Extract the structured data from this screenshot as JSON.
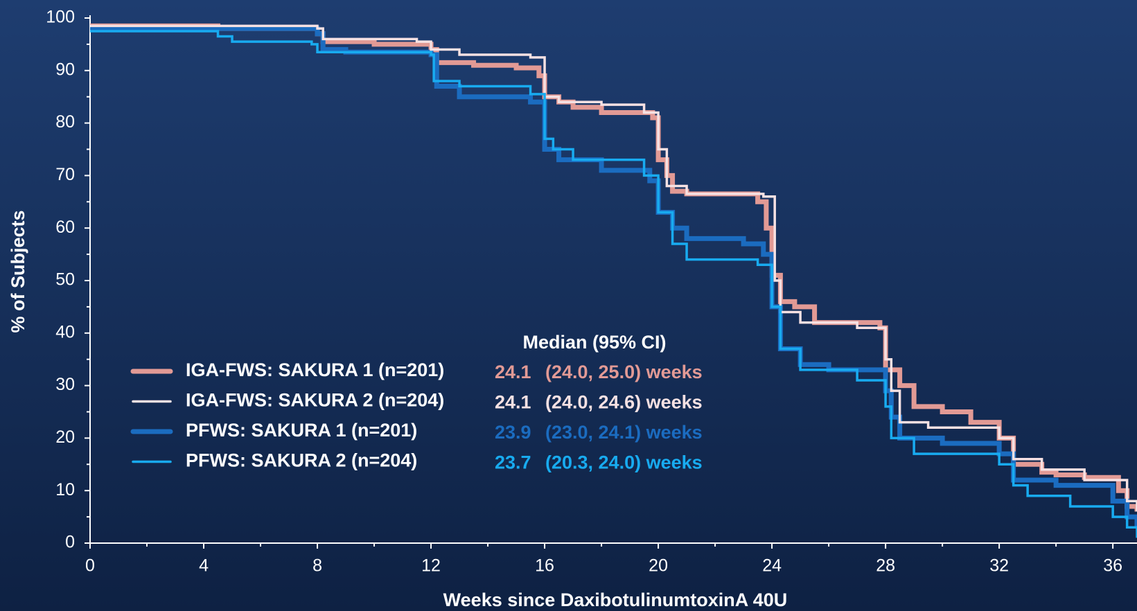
{
  "chart_data": {
    "type": "line",
    "step": true,
    "x_label": "Weeks since DaxibotulinumtoxinA 40U",
    "y_label": "% of Subjects",
    "median_header": "Median (95% CI)",
    "xlim": [
      0,
      36.85
    ],
    "ylim": [
      0,
      100
    ],
    "xticks": [
      0,
      4,
      8,
      12,
      16,
      20,
      24,
      28,
      32,
      36
    ],
    "xminorticks": [
      2,
      6,
      10,
      14,
      18,
      22,
      26,
      30,
      34
    ],
    "yticks": [
      0,
      10,
      20,
      30,
      40,
      50,
      60,
      70,
      80,
      90,
      100
    ],
    "yminorticks": [
      5,
      15,
      25,
      35,
      45,
      55,
      65,
      75,
      85,
      95
    ],
    "series": [
      {
        "name": "IGA-FWS: SAKURA 1 (n=201)",
        "color": "#e29a95",
        "width": 7,
        "median": "24.1",
        "ci": "(24.0, 25.0) weeks",
        "x": [
          0,
          4.5,
          8,
          8.2,
          10,
          12,
          12.2,
          13.5,
          15,
          15.8,
          16,
          16.5,
          17,
          18,
          19.8,
          20,
          20.3,
          20.5,
          21,
          23.5,
          23.8,
          24,
          24.3,
          24.8,
          25.5,
          27.8,
          28,
          28.5,
          29,
          30,
          31,
          32,
          32.5,
          33.5,
          34,
          35,
          36.2,
          36.5,
          36.85
        ],
        "values": [
          98.5,
          98,
          97,
          95.5,
          95,
          94,
          91.5,
          91,
          90.5,
          89,
          85,
          84,
          83,
          82,
          81,
          73,
          70,
          67,
          66.5,
          65,
          60,
          51,
          46,
          45,
          42,
          41,
          33,
          30,
          26,
          25,
          23,
          20,
          15,
          13.5,
          13,
          12.5,
          10,
          7,
          6
        ]
      },
      {
        "name": "PFWS: SAKURA 1 (n=201)",
        "color": "#1b6cc0",
        "width": 7,
        "median": "23.9",
        "ci": "(23.0, 24.1) weeks",
        "x": [
          0,
          8,
          8.2,
          9,
          12,
          12.2,
          13,
          15.5,
          16,
          16.5,
          18,
          19.7,
          20,
          20.5,
          21,
          23,
          23.7,
          24,
          24.3,
          25,
          26,
          28,
          28.2,
          28.5,
          30,
          32,
          32.5,
          34,
          36,
          36.5,
          36.85
        ],
        "values": [
          98,
          97,
          94,
          93.5,
          93,
          87,
          85,
          84,
          75,
          73,
          71,
          69,
          63,
          60,
          58,
          57,
          55,
          45,
          37,
          34,
          33,
          29,
          24,
          20,
          19,
          17,
          12,
          11,
          8,
          5,
          3
        ]
      },
      {
        "name": "IGA-FWS: SAKURA 2 (n=204)",
        "color": "#f6e1e3",
        "width": 3.5,
        "median": "24.1",
        "ci": "(24.0, 24.6) weeks",
        "x": [
          0,
          8,
          8.2,
          11.5,
          12,
          13,
          15.5,
          16,
          16.5,
          18,
          19.5,
          20,
          20.3,
          21,
          23.7,
          24.1,
          24.3,
          25,
          27,
          28,
          28.2,
          28.5,
          29.5,
          32,
          32.5,
          33.5,
          35,
          36.5,
          36.85
        ],
        "values": [
          98.5,
          98,
          96,
          95.5,
          94,
          93,
          92.5,
          85,
          84,
          83.5,
          82,
          75,
          68,
          66.5,
          66,
          50,
          44,
          42,
          41,
          35,
          29,
          23,
          22,
          20,
          16,
          14,
          12,
          8,
          6
        ]
      },
      {
        "name": "PFWS: SAKURA 2 (n=204)",
        "color": "#18abf0",
        "width": 3.5,
        "median": "23.7",
        "ci": "(20.3, 24.0) weeks",
        "x": [
          0,
          4.5,
          5,
          7.8,
          8,
          12,
          12.1,
          13,
          15.5,
          16,
          16.3,
          17,
          19.5,
          20,
          20.5,
          21,
          23.5,
          24,
          24.3,
          25,
          27,
          28,
          28.2,
          29,
          32,
          32.5,
          33,
          34.5,
          36,
          36.5,
          36.85
        ],
        "values": [
          97.5,
          96.5,
          95.5,
          95,
          93.5,
          93,
          88,
          87,
          85.5,
          77,
          75,
          73,
          70,
          63,
          57,
          54,
          53,
          45,
          37,
          33,
          31,
          26,
          20,
          17,
          15,
          11,
          9,
          7,
          5,
          3,
          1
        ]
      }
    ],
    "legend_order": [
      0,
      2,
      1,
      3
    ]
  }
}
